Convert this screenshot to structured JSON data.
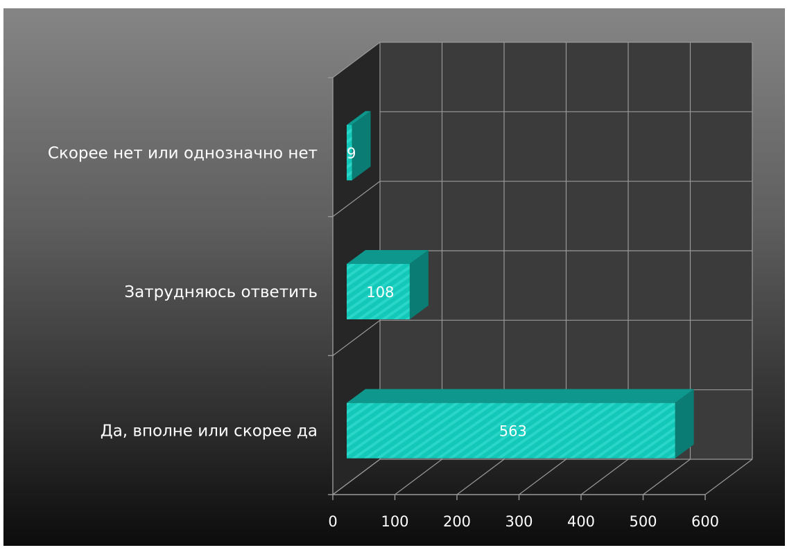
{
  "chart_data": {
    "type": "bar",
    "orientation": "horizontal",
    "three_d": true,
    "categories": [
      "Скорее нет или однозначно нет",
      "Затрудняюсь ответить",
      "Да, вполне или скорее да"
    ],
    "values": [
      9,
      108,
      563
    ],
    "data_labels": [
      "9",
      "108",
      "563"
    ],
    "xlim": [
      0,
      600
    ],
    "x_ticks": [
      0,
      100,
      200,
      300,
      400,
      500,
      600
    ],
    "grid": true,
    "legend": "none",
    "colors": {
      "bar_front": "#13c7b9",
      "bar_top": "#0e978c",
      "bar_side": "#0b7c73",
      "back_wall": "#3b3b3b",
      "side_wall": "#262626",
      "grid_line": "#9a9a9a",
      "text": "#ffffff"
    }
  }
}
